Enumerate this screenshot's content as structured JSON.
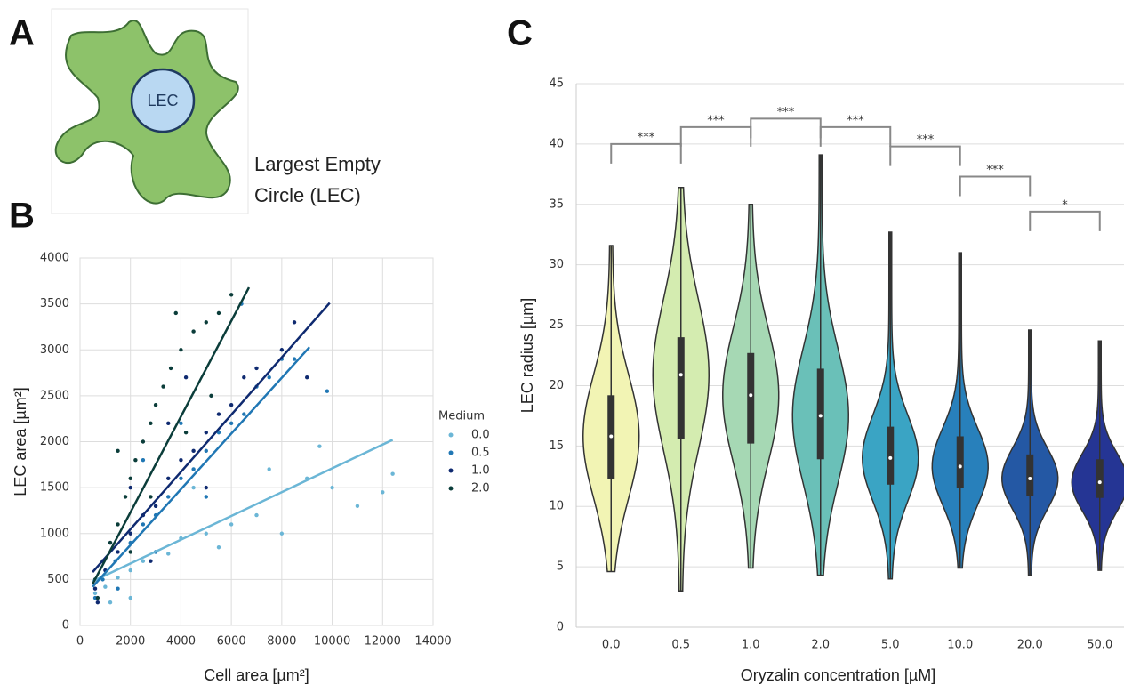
{
  "panel_labels": [
    "A",
    "B",
    "C"
  ],
  "diagram": {
    "circle_label": "LEC",
    "caption": [
      "Largest Empty",
      "Circle (LEC)"
    ]
  },
  "chart_data": [
    {
      "type": "scatter",
      "xlabel": "Cell area [µm²]",
      "ylabel": "LEC area [µm²]",
      "xlim": [
        0,
        14000
      ],
      "xticks": [
        0,
        2000,
        4000,
        6000,
        8000,
        10000,
        12000,
        14000
      ],
      "ylim": [
        0,
        4000
      ],
      "yticks": [
        0,
        500,
        1000,
        1500,
        2000,
        2500,
        3000,
        3500,
        4000
      ],
      "grid": true,
      "legend_title": "Medium",
      "legend": "right",
      "series": [
        {
          "name": "0.0",
          "color": "#6bb6d6",
          "x": [
            600,
            1000,
            1500,
            2000,
            2500,
            3000,
            3500,
            4000,
            5000,
            5500,
            6000,
            7000,
            8000,
            9000,
            10000,
            11000,
            12000,
            12400,
            3000,
            4500,
            7500,
            9500,
            2000,
            1200
          ],
          "values": [
            350,
            420,
            520,
            600,
            700,
            800,
            780,
            950,
            1000,
            850,
            1100,
            1200,
            1000,
            1600,
            1500,
            1300,
            1450,
            1650,
            1300,
            1500,
            1700,
            1950,
            300,
            250
          ],
          "fit": {
            "x": [
              500,
              12400
            ],
            "y": [
              480,
              2020
            ]
          }
        },
        {
          "name": "0.5",
          "color": "#2077b4",
          "x": [
            600,
            900,
            1400,
            2000,
            2500,
            3000,
            3500,
            4000,
            4500,
            5000,
            5500,
            6000,
            6500,
            7000,
            7500,
            8000,
            8500,
            9800,
            3000,
            5000,
            4000,
            6400,
            2500,
            1500
          ],
          "values": [
            300,
            500,
            700,
            900,
            1100,
            1200,
            1400,
            1600,
            1700,
            1900,
            2100,
            2200,
            2300,
            2600,
            2700,
            2900,
            2900,
            2550,
            800,
            1400,
            2200,
            3500,
            1800,
            400
          ],
          "fit": {
            "x": [
              500,
              9100
            ],
            "y": [
              420,
              3030
            ]
          }
        },
        {
          "name": "1.0",
          "color": "#0f2a70",
          "x": [
            600,
            1000,
            1500,
            2000,
            2500,
            3000,
            3500,
            4000,
            4500,
            5000,
            5500,
            6000,
            6500,
            7000,
            8000,
            8500,
            2000,
            3500,
            5000,
            4200,
            9000,
            1200,
            2800,
            700
          ],
          "values": [
            400,
            600,
            800,
            1000,
            1200,
            1300,
            1600,
            1800,
            1900,
            2100,
            2300,
            2400,
            2700,
            2800,
            3000,
            3300,
            1500,
            2200,
            1500,
            2700,
            2700,
            900,
            700,
            250
          ],
          "fit": {
            "x": [
              500,
              9900
            ],
            "y": [
              580,
              3510
            ]
          }
        },
        {
          "name": "2.0",
          "color": "#0b3d3a",
          "x": [
            600,
            900,
            1200,
            1500,
            1800,
            2000,
            2200,
            2500,
            2800,
            3000,
            3300,
            3600,
            4000,
            4500,
            5000,
            5500,
            6000,
            3800,
            2800,
            4200,
            5200,
            1500,
            2000,
            700
          ],
          "values": [
            500,
            700,
            900,
            1100,
            1400,
            1600,
            1800,
            2000,
            2200,
            2400,
            2600,
            2800,
            3000,
            3200,
            3300,
            3400,
            3600,
            3400,
            1400,
            2100,
            2500,
            1900,
            800,
            300
          ],
          "fit": {
            "x": [
              500,
              6700
            ],
            "y": [
              450,
              3680
            ]
          }
        }
      ]
    },
    {
      "type": "violin",
      "xlabel": "Oryzalin concentration [µM]",
      "ylabel": "LEC radius [µm]",
      "categories": [
        "0.0",
        "0.5",
        "1.0",
        "2.0",
        "5.0",
        "10.0",
        "20.0",
        "50.0"
      ],
      "colors": [
        "#f2f4b4",
        "#d4ecb0",
        "#a6d8b4",
        "#6ac0b8",
        "#3aa4c4",
        "#2880bb",
        "#2458a4",
        "#253594"
      ],
      "stats": [
        {
          "min": 4.6,
          "q1": 12.3,
          "median": 15.8,
          "q3": 19.2,
          "max": 31.6
        },
        {
          "min": 3.0,
          "q1": 15.6,
          "median": 20.9,
          "q3": 24.0,
          "max": 36.4
        },
        {
          "min": 4.9,
          "q1": 15.2,
          "median": 19.2,
          "q3": 22.7,
          "max": 35.0
        },
        {
          "min": 4.3,
          "q1": 13.9,
          "median": 17.5,
          "q3": 21.4,
          "max": 39.1
        },
        {
          "min": 4.0,
          "q1": 11.8,
          "median": 14.0,
          "q3": 16.6,
          "max": 32.7
        },
        {
          "min": 4.9,
          "q1": 11.5,
          "median": 13.3,
          "q3": 15.8,
          "max": 31.0
        },
        {
          "min": 4.3,
          "q1": 10.9,
          "median": 12.3,
          "q3": 14.3,
          "max": 24.6
        },
        {
          "min": 4.7,
          "q1": 10.7,
          "median": 12.0,
          "q3": 13.9,
          "max": 23.7
        }
      ],
      "ylim": [
        0,
        45
      ],
      "yticks": [
        0,
        5,
        10,
        15,
        20,
        25,
        30,
        35,
        40,
        45
      ],
      "grid": true,
      "annotations": [
        {
          "from": 0,
          "to": 1,
          "y": 40.0,
          "label": "***"
        },
        {
          "from": 1,
          "to": 2,
          "y": 41.4,
          "label": "***"
        },
        {
          "from": 2,
          "to": 3,
          "y": 42.1,
          "label": "***"
        },
        {
          "from": 3,
          "to": 4,
          "y": 41.4,
          "label": "***"
        },
        {
          "from": 4,
          "to": 5,
          "y": 39.8,
          "label": "***"
        },
        {
          "from": 5,
          "to": 6,
          "y": 37.3,
          "label": "***"
        },
        {
          "from": 6,
          "to": 7,
          "y": 34.4,
          "label": "*"
        }
      ]
    }
  ]
}
